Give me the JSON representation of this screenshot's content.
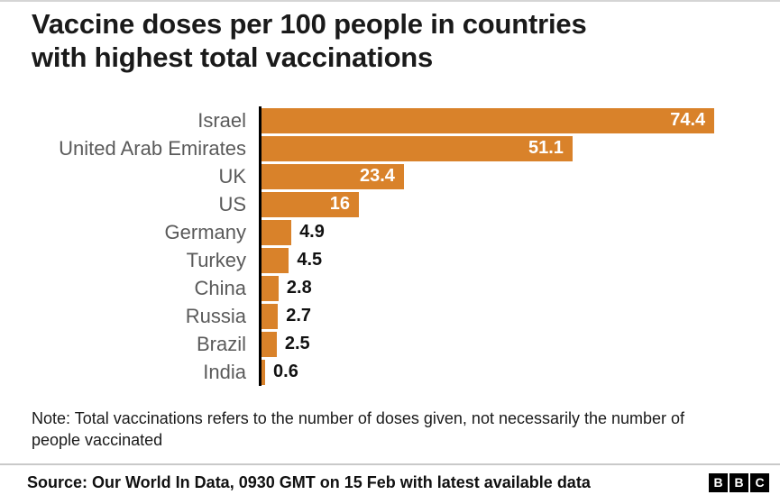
{
  "title_lines": [
    "Vaccine doses per 100 people in countries",
    "with highest total vaccinations"
  ],
  "chart_data": {
    "type": "bar",
    "orientation": "horizontal",
    "title": "Vaccine doses per 100 people in countries with highest total vaccinations",
    "categories": [
      "Israel",
      "United Arab Emirates",
      "UK",
      "US",
      "Germany",
      "Turkey",
      "China",
      "Russia",
      "Brazil",
      "India"
    ],
    "values": [
      74.4,
      51.1,
      23.4,
      16,
      4.9,
      4.5,
      2.8,
      2.7,
      2.5,
      0.6
    ],
    "value_labels": [
      "74.4",
      "51.1",
      "23.4",
      "16",
      "4.9",
      "4.5",
      "2.8",
      "2.7",
      "2.5",
      "0.6"
    ],
    "xlabel": "",
    "ylabel": "",
    "xlim": [
      0,
      80
    ],
    "grid": false,
    "legend": false,
    "bar_color": "#d9822a"
  },
  "note": "Note: Total vaccinations refers to the number of doses given, not necessarily the number of people vaccinated",
  "source": "Source: Our World In Data, 0930 GMT on 15 Feb with latest available data",
  "logo": {
    "letters": [
      "B",
      "B",
      "C"
    ]
  }
}
